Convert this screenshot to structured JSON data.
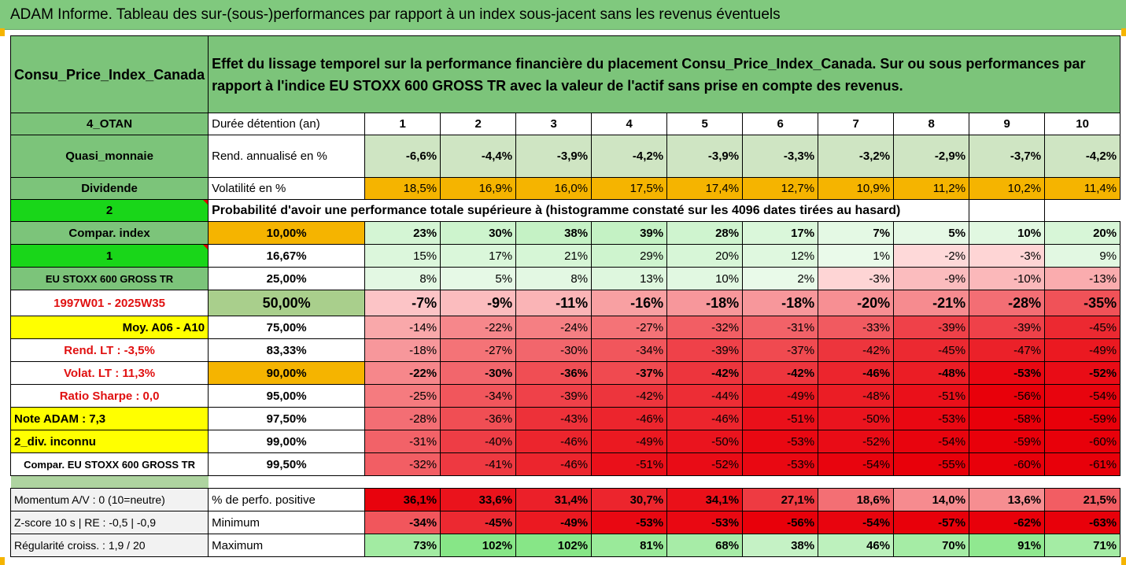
{
  "header": {
    "title": "ADAM Informe. Tableau des sur-(sous-)performances par rapport à un index sous-jacent sans les revenus éventuels"
  },
  "fund": {
    "name": "Consu_Price_Index_Canada",
    "description": "Effet du lissage temporel sur la performance financière du placement Consu_Price_Index_Canada. Sur ou sous performances par rapport à l'indice EU STOXX 600 GROSS TR avec la valeur de l'actif sans prise en compte des revenus."
  },
  "rows": {
    "duration": {
      "side": "4_OTAN",
      "label": "Durée détention (an)",
      "values": [
        "1",
        "2",
        "3",
        "4",
        "5",
        "6",
        "7",
        "8",
        "9",
        "10"
      ]
    },
    "return": {
      "side": "Quasi_monnaie",
      "label": "Rend. annualisé en %",
      "values": [
        "-6,6%",
        "-4,4%",
        "-3,9%",
        "-4,2%",
        "-3,9%",
        "-3,3%",
        "-3,2%",
        "-2,9%",
        "-3,7%",
        "-4,2%"
      ]
    },
    "volatility": {
      "side": "Dividende",
      "label": "Volatilité en %",
      "values": [
        "18,5%",
        "16,9%",
        "16,0%",
        "17,5%",
        "17,4%",
        "12,7%",
        "10,9%",
        "11,2%",
        "10,2%",
        "11,4%"
      ]
    },
    "probability": {
      "side": "2",
      "label": "Probabilité d'avoir une performance totale supérieure à (histogramme constaté sur les 4096 dates tirées au hasard)"
    }
  },
  "side_labels": [
    "Compar. index",
    "1",
    "EU STOXX 600 GROSS TR",
    "1997W01 - 2025W35",
    "Moy. A06 - A10",
    "Rend. LT :   -3,5%",
    "Volat. LT :   11,3%",
    "Ratio Sharpe :    0,0",
    "Note ADAM : 7,3",
    "2_div. inconnu",
    "Compar. EU STOXX 600 GROSS TR"
  ],
  "percentiles": [
    {
      "p": "10,00%",
      "values": [
        "23%",
        "30%",
        "38%",
        "39%",
        "28%",
        "17%",
        "7%",
        "5%",
        "10%",
        "20%"
      ]
    },
    {
      "p": "16,67%",
      "values": [
        "15%",
        "17%",
        "21%",
        "29%",
        "20%",
        "12%",
        "1%",
        "-2%",
        "-3%",
        "9%"
      ]
    },
    {
      "p": "25,00%",
      "values": [
        "8%",
        "5%",
        "8%",
        "13%",
        "10%",
        "2%",
        "-3%",
        "-9%",
        "-10%",
        "-13%"
      ]
    },
    {
      "p": "50,00%",
      "values": [
        "-7%",
        "-9%",
        "-11%",
        "-16%",
        "-18%",
        "-18%",
        "-20%",
        "-21%",
        "-28%",
        "-35%"
      ]
    },
    {
      "p": "75,00%",
      "values": [
        "-14%",
        "-22%",
        "-24%",
        "-27%",
        "-32%",
        "-31%",
        "-33%",
        "-39%",
        "-39%",
        "-45%"
      ]
    },
    {
      "p": "83,33%",
      "values": [
        "-18%",
        "-27%",
        "-30%",
        "-34%",
        "-39%",
        "-37%",
        "-42%",
        "-45%",
        "-47%",
        "-49%"
      ]
    },
    {
      "p": "90,00%",
      "values": [
        "-22%",
        "-30%",
        "-36%",
        "-37%",
        "-42%",
        "-42%",
        "-46%",
        "-48%",
        "-53%",
        "-52%"
      ]
    },
    {
      "p": "95,00%",
      "values": [
        "-25%",
        "-34%",
        "-39%",
        "-42%",
        "-44%",
        "-49%",
        "-48%",
        "-51%",
        "-56%",
        "-54%"
      ]
    },
    {
      "p": "97,50%",
      "values": [
        "-28%",
        "-36%",
        "-43%",
        "-46%",
        "-46%",
        "-51%",
        "-50%",
        "-53%",
        "-58%",
        "-59%"
      ]
    },
    {
      "p": "99,00%",
      "values": [
        "-31%",
        "-40%",
        "-46%",
        "-49%",
        "-50%",
        "-53%",
        "-52%",
        "-54%",
        "-59%",
        "-60%"
      ]
    },
    {
      "p": "99,50%",
      "values": [
        "-32%",
        "-41%",
        "-46%",
        "-51%",
        "-52%",
        "-53%",
        "-54%",
        "-55%",
        "-60%",
        "-61%"
      ]
    }
  ],
  "stats": [
    {
      "side": "Momentum A/V : 0 (10=neutre)",
      "label": "% de perfo. positive",
      "values": [
        "36,1%",
        "33,6%",
        "31,4%",
        "30,7%",
        "34,1%",
        "27,1%",
        "18,6%",
        "14,0%",
        "13,6%",
        "21,5%"
      ]
    },
    {
      "side": "Z-score 10 s  |  RE : -0,5  | -0,9",
      "label": "Minimum",
      "values": [
        "-34%",
        "-45%",
        "-49%",
        "-53%",
        "-53%",
        "-56%",
        "-54%",
        "-57%",
        "-62%",
        "-63%"
      ]
    },
    {
      "side": "Régularité croiss. : 1,9 / 20",
      "label": "Maximum",
      "values": [
        "73%",
        "102%",
        "102%",
        "81%",
        "68%",
        "38%",
        "46%",
        "70%",
        "91%",
        "71%"
      ]
    }
  ],
  "colors": {
    "header_green": "#80c97e",
    "accent_orange": "#f5b400",
    "accent_yellow": "#ffff00",
    "bright_green": "#19d619",
    "strong_red": "#e8000a"
  }
}
